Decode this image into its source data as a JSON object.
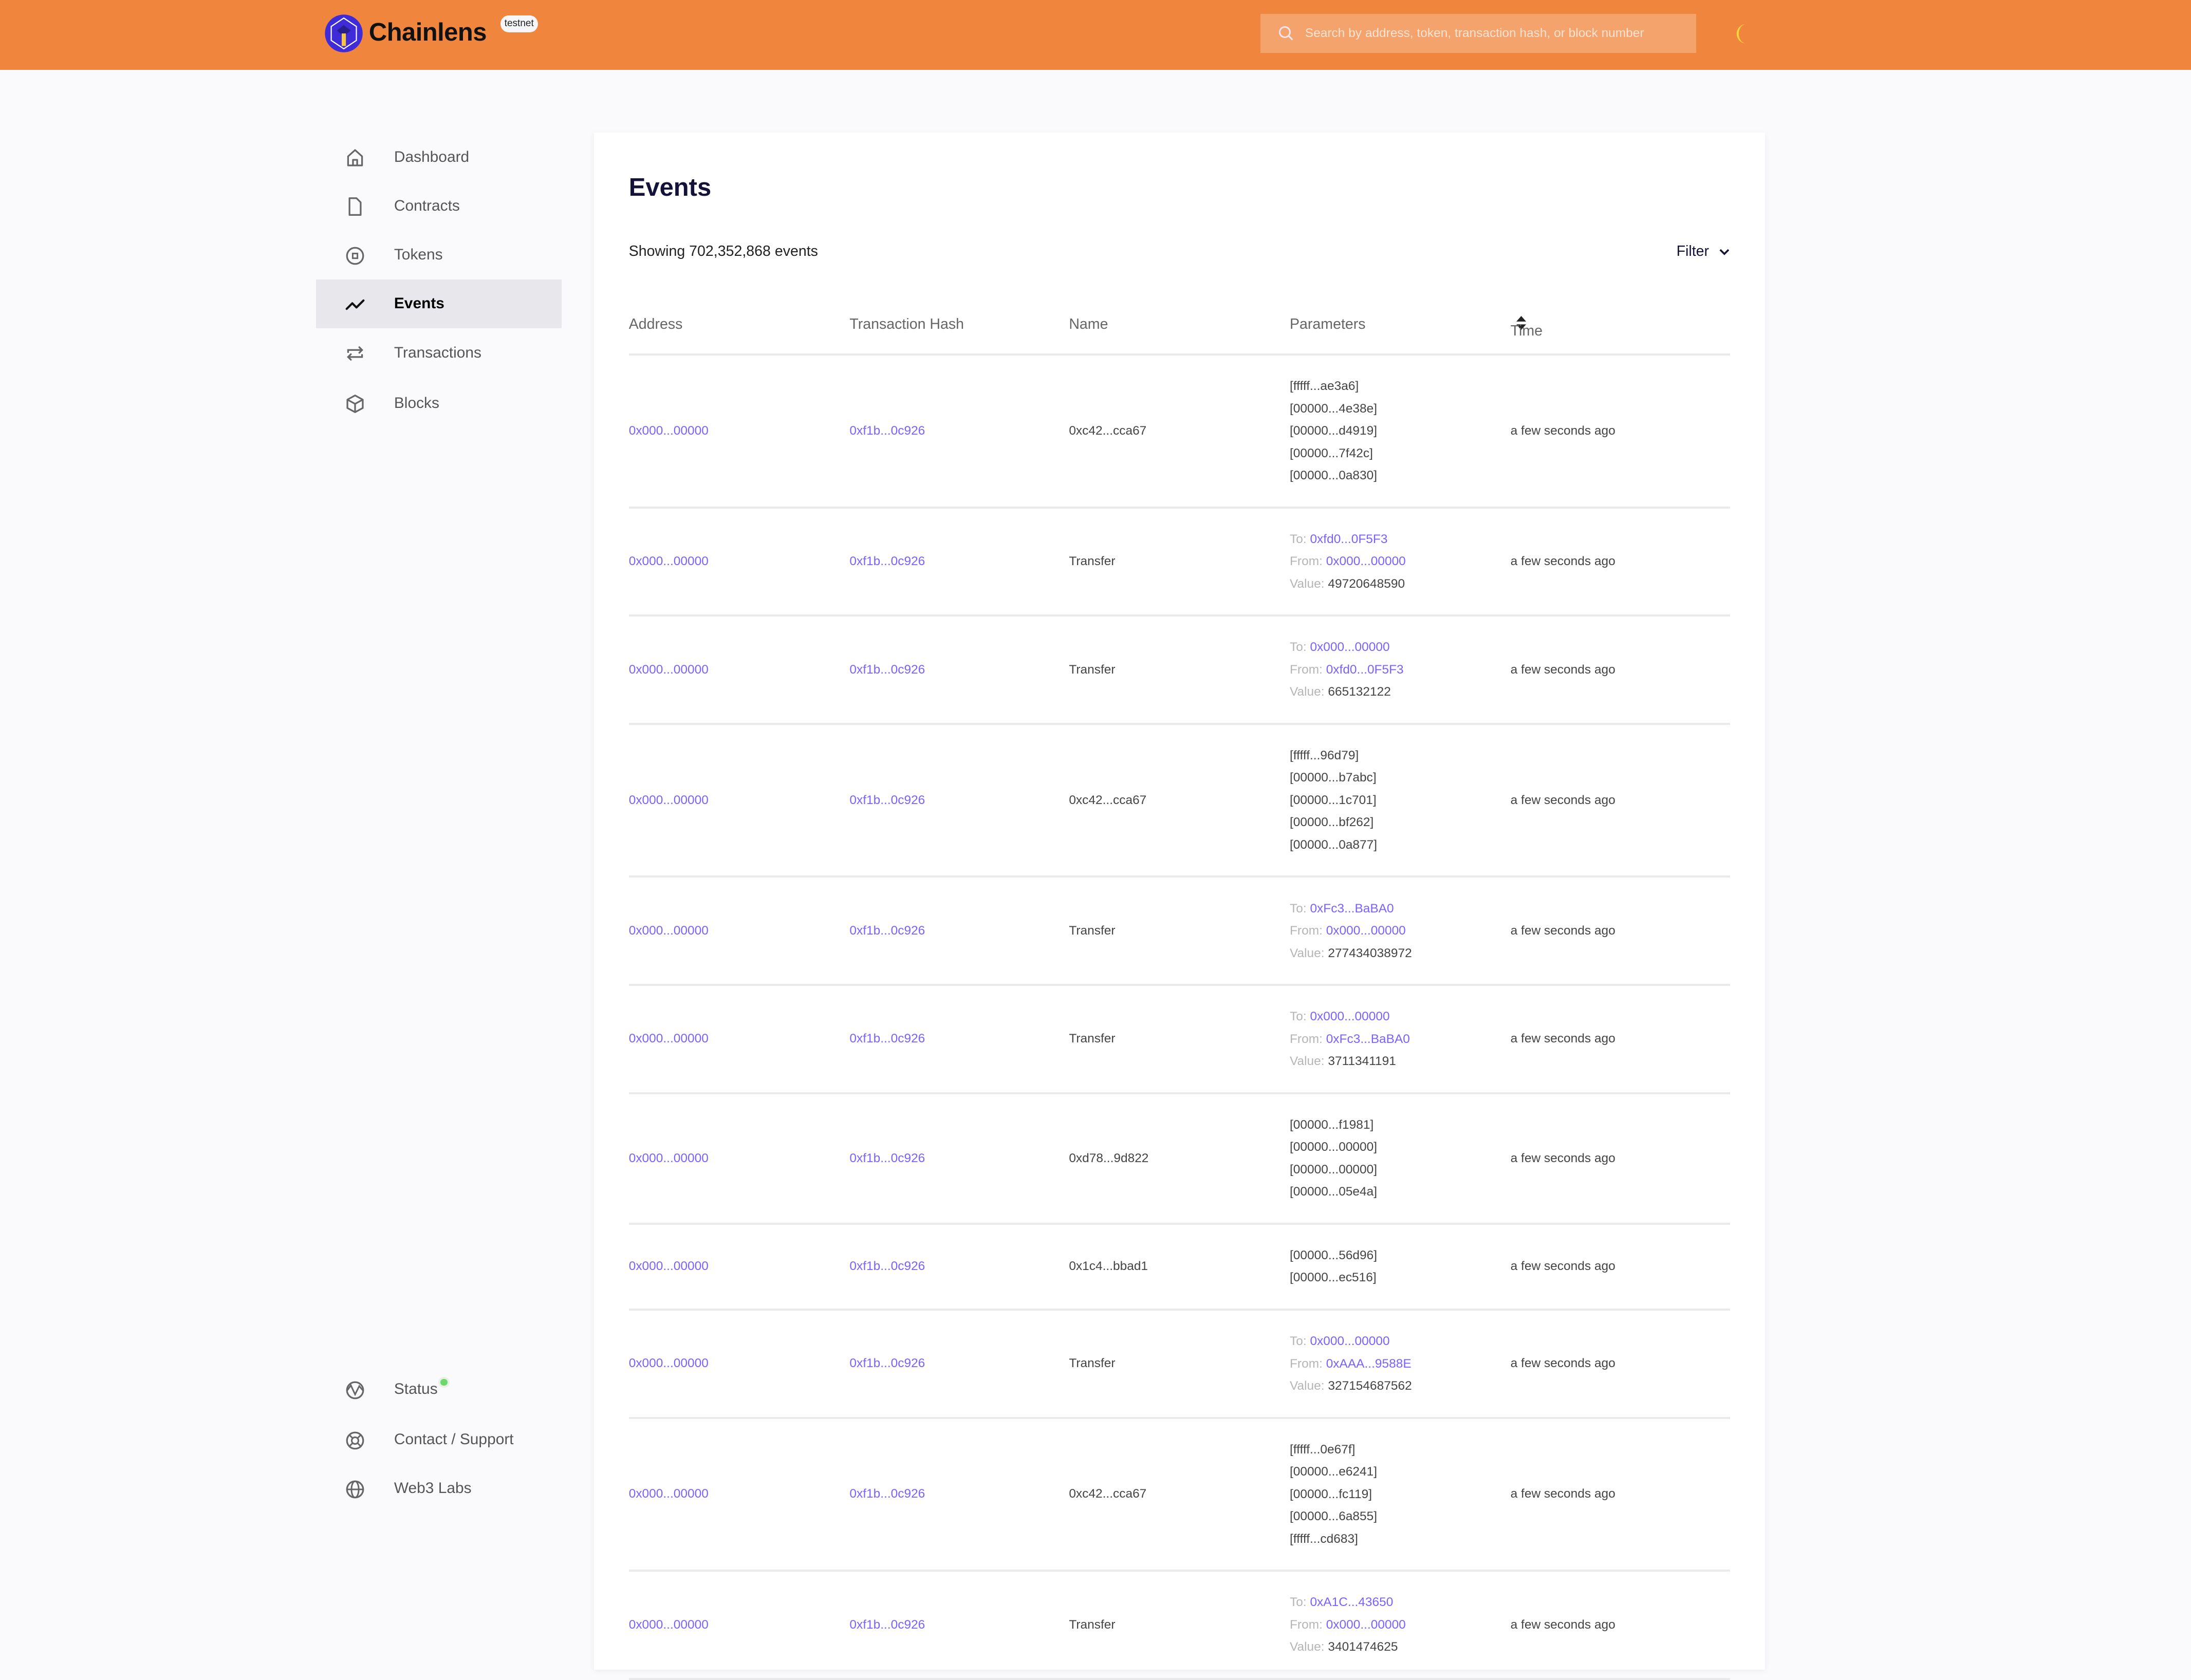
{
  "header": {
    "brand": "Chainlens",
    "badge": "testnet",
    "search_placeholder": "Search by address, token, transaction hash, or block number",
    "accent_color": "#F0853D"
  },
  "sidebar": {
    "items": [
      {
        "label": "Dashboard",
        "icon": "home-icon"
      },
      {
        "label": "Contracts",
        "icon": "file-icon"
      },
      {
        "label": "Tokens",
        "icon": "token-icon"
      },
      {
        "label": "Events",
        "icon": "activity-line-icon",
        "active": true
      },
      {
        "label": "Transactions",
        "icon": "arrows-exchange-icon"
      },
      {
        "label": "Blocks",
        "icon": "cube-icon"
      }
    ],
    "footer": [
      {
        "label": "Status",
        "icon": "pulse-icon",
        "status_color": "#6FD66B"
      },
      {
        "label": "Contact / Support",
        "icon": "lifebuoy-icon"
      },
      {
        "label": "Web3 Labs",
        "icon": "globe-icon"
      }
    ]
  },
  "main": {
    "title": "Events",
    "count_text": "Showing 702,352,868 events",
    "filter_label": "Filter",
    "columns": [
      "Address",
      "Transaction Hash",
      "Name",
      "Parameters",
      "Time"
    ],
    "labels": {
      "to": "To:",
      "from": "From:",
      "value": "Value:"
    },
    "link_color": "#7B61FF",
    "rows": [
      {
        "address": "0x000...00000",
        "tx": "0xf1b...0c926",
        "name": "0xc42...cca67",
        "params": [
          "[fffff...ae3a6]",
          "[00000...4e38e]",
          "[00000...d4919]",
          "[00000...7f42c]",
          "[00000...0a830]"
        ],
        "time": "a few seconds ago"
      },
      {
        "address": "0x000...00000",
        "tx": "0xf1b...0c926",
        "name": "Transfer",
        "transfer": {
          "to": "0xfd0...0F5F3",
          "from": "0x000...00000",
          "value": "49720648590"
        },
        "time": "a few seconds ago"
      },
      {
        "address": "0x000...00000",
        "tx": "0xf1b...0c926",
        "name": "Transfer",
        "transfer": {
          "to": "0x000...00000",
          "from": "0xfd0...0F5F3",
          "value": "665132122"
        },
        "time": "a few seconds ago"
      },
      {
        "address": "0x000...00000",
        "tx": "0xf1b...0c926",
        "name": "0xc42...cca67",
        "params": [
          "[fffff...96d79]",
          "[00000...b7abc]",
          "[00000...1c701]",
          "[00000...bf262]",
          "[00000...0a877]"
        ],
        "time": "a few seconds ago"
      },
      {
        "address": "0x000...00000",
        "tx": "0xf1b...0c926",
        "name": "Transfer",
        "transfer": {
          "to": "0xFc3...BaBA0",
          "from": "0x000...00000",
          "value": "277434038972"
        },
        "time": "a few seconds ago"
      },
      {
        "address": "0x000...00000",
        "tx": "0xf1b...0c926",
        "name": "Transfer",
        "transfer": {
          "to": "0x000...00000",
          "from": "0xFc3...BaBA0",
          "value": "3711341191"
        },
        "time": "a few seconds ago"
      },
      {
        "address": "0x000...00000",
        "tx": "0xf1b...0c926",
        "name": "0xd78...9d822",
        "params": [
          "[00000...f1981]",
          "[00000...00000]",
          "[00000...00000]",
          "[00000...05e4a]"
        ],
        "time": "a few seconds ago"
      },
      {
        "address": "0x000...00000",
        "tx": "0xf1b...0c926",
        "name": "0x1c4...bbad1",
        "params": [
          "[00000...56d96]",
          "[00000...ec516]"
        ],
        "time": "a few seconds ago"
      },
      {
        "address": "0x000...00000",
        "tx": "0xf1b...0c926",
        "name": "Transfer",
        "transfer": {
          "to": "0x000...00000",
          "from": "0xAAA...9588E",
          "value": "327154687562"
        },
        "time": "a few seconds ago"
      },
      {
        "address": "0x000...00000",
        "tx": "0xf1b...0c926",
        "name": "0xc42...cca67",
        "params": [
          "[fffff...0e67f]",
          "[00000...e6241]",
          "[00000...fc119]",
          "[00000...6a855]",
          "[fffff...cd683]"
        ],
        "time": "a few seconds ago"
      },
      {
        "address": "0x000...00000",
        "tx": "0xf1b...0c926",
        "name": "Transfer",
        "transfer": {
          "to": "0xA1C...43650",
          "from": "0x000...00000",
          "value": "3401474625"
        },
        "time": "a few seconds ago"
      }
    ]
  }
}
